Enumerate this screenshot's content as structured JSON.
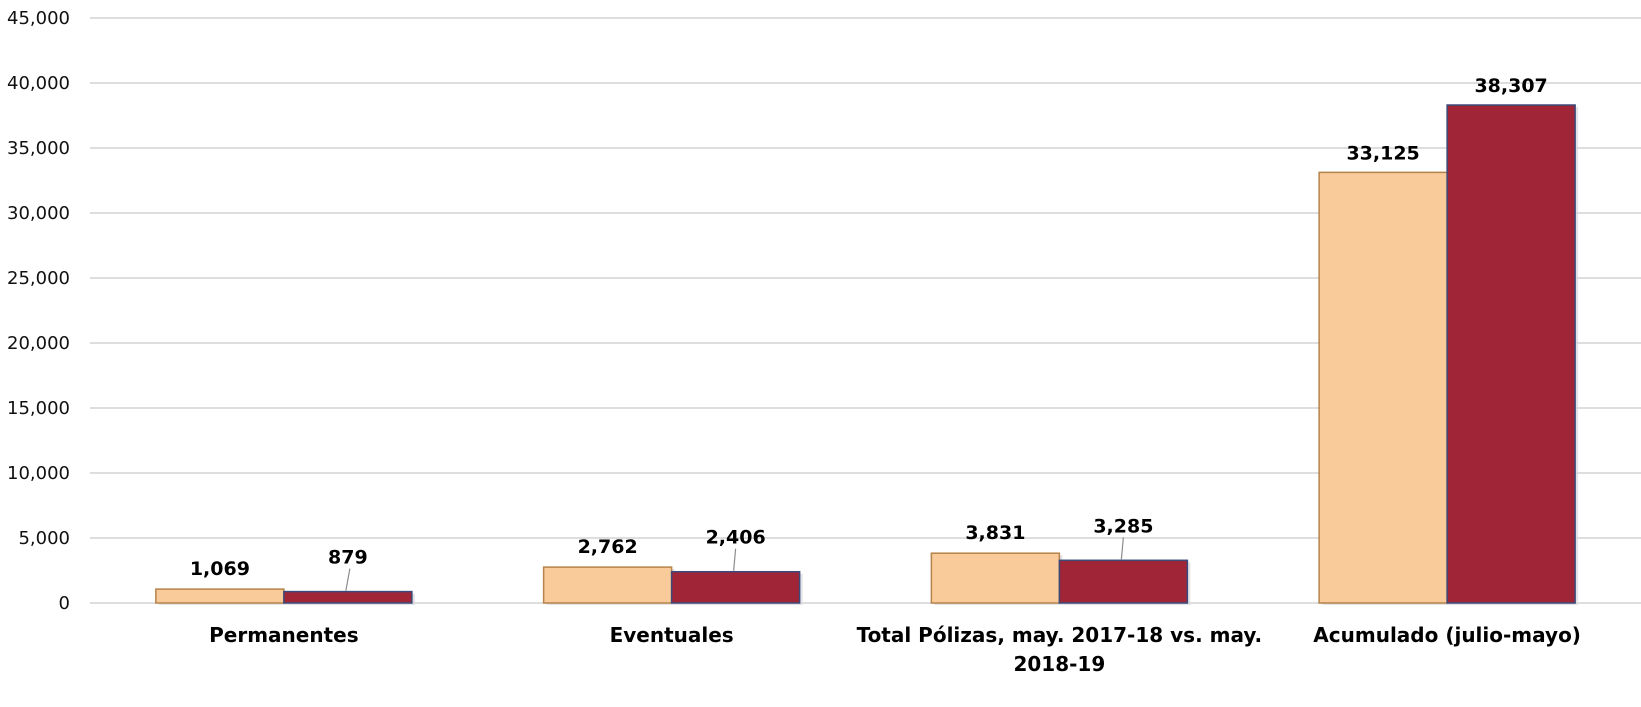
{
  "chart_data": {
    "type": "bar",
    "categories": [
      [
        "Permanentes"
      ],
      [
        "Eventuales"
      ],
      [
        "Total Pólizas, may. 2017-18  vs. may.",
        "2018-19"
      ],
      [
        "Acumulado (julio-mayo)"
      ]
    ],
    "series": [
      {
        "values": [
          1069,
          2762,
          3831,
          33125
        ],
        "labels": [
          "1,069",
          "2,762",
          "3,831",
          "33,125"
        ],
        "color": "#f9cb9b",
        "border": "#b5834a"
      },
      {
        "values": [
          879,
          2406,
          3285,
          38307
        ],
        "labels": [
          "879",
          "2,406",
          "3,285",
          "38,307"
        ],
        "color": "#a02537",
        "border": "#3b4a7a"
      }
    ],
    "ylim": [
      0,
      45000
    ],
    "yticks": [
      0,
      5000,
      10000,
      15000,
      20000,
      25000,
      30000,
      35000,
      40000,
      45000
    ],
    "ytick_labels": [
      "0",
      "5,000",
      "10,000",
      "15,000",
      "20,000",
      "25,000",
      "30,000",
      "35,000",
      "40,000",
      "45,000"
    ],
    "grid": true,
    "legend": "none",
    "title": "",
    "xlabel": "",
    "ylabel": ""
  }
}
